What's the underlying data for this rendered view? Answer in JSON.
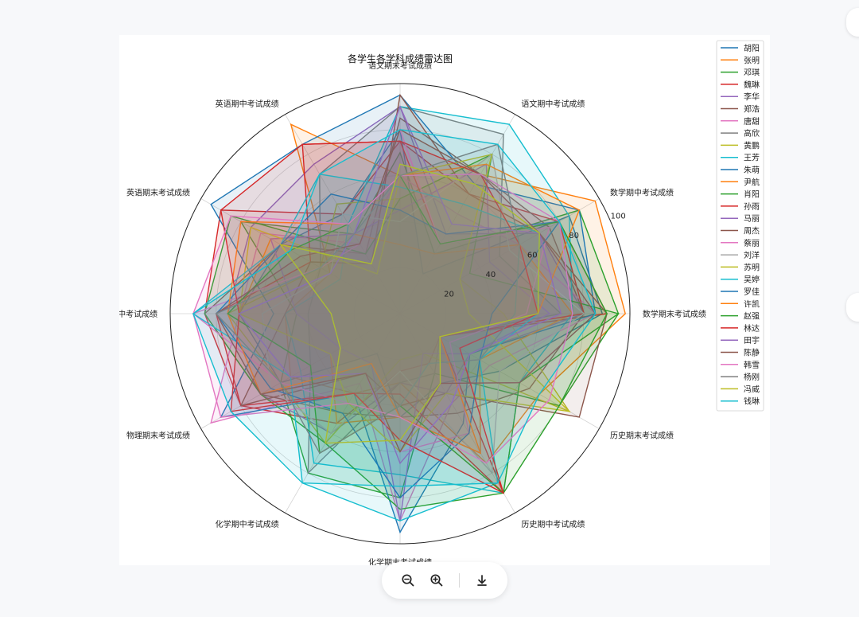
{
  "toolbar": {
    "zoom_out_icon": "zoom-out-icon",
    "zoom_in_icon": "zoom-in-icon",
    "download_icon": "download-icon"
  },
  "chart_data": {
    "type": "radar",
    "title": "各学生各学科成绩雷达图",
    "axes": [
      "语文期末考试成绩",
      "语文期中考试成绩",
      "数学期中考试成绩",
      "数学期末考试成绩",
      "历史期末考试成绩",
      "历史期中考试成绩",
      "化学期末考试成绩",
      "化学期中考试成绩",
      "物理期末考试成绩",
      "物理期中考试成绩",
      "英语期末考试成绩",
      "英语期中考试成绩"
    ],
    "rlim": [
      0,
      100
    ],
    "rticks": [
      20,
      40,
      60,
      80,
      100
    ],
    "grid": true,
    "legend_position": "upper-right-outside",
    "series": [
      {
        "name": "胡阳",
        "color": "#1f77b4",
        "values": [
          80,
          20,
          85,
          88,
          50,
          35,
          45,
          20,
          60,
          70,
          60,
          50
        ]
      },
      {
        "name": "张明",
        "color": "#ff7f0e",
        "values": [
          60,
          70,
          98,
          98,
          70,
          75,
          30,
          40,
          55,
          50,
          35,
          95
        ]
      },
      {
        "name": "邓琪",
        "color": "#2ca02c",
        "values": [
          70,
          30,
          90,
          95,
          80,
          30,
          80,
          80,
          60,
          45,
          80,
          40
        ]
      },
      {
        "name": "魏琳",
        "color": "#d62728",
        "values": [
          75,
          60,
          80,
          90,
          20,
          25,
          25,
          55,
          80,
          85,
          90,
          50
        ]
      },
      {
        "name": "李华",
        "color": "#9467bd",
        "values": [
          90,
          40,
          70,
          80,
          35,
          40,
          30,
          60,
          70,
          75,
          75,
          75
        ]
      },
      {
        "name": "郑浩",
        "color": "#8c564b",
        "values": [
          85,
          70,
          75,
          80,
          65,
          50,
          45,
          50,
          70,
          85,
          60,
          30
        ]
      },
      {
        "name": "唐甜",
        "color": "#e377c2",
        "values": [
          60,
          50,
          60,
          85,
          45,
          45,
          90,
          35,
          95,
          70,
          70,
          35
        ]
      },
      {
        "name": "高欣",
        "color": "#7f7f7f",
        "values": [
          90,
          90,
          50,
          70,
          20,
          30,
          30,
          80,
          45,
          40,
          40,
          70
        ]
      },
      {
        "name": "黄鹏",
        "color": "#bcbd22",
        "values": [
          50,
          80,
          30,
          45,
          85,
          20,
          20,
          65,
          60,
          75,
          40,
          55
        ]
      },
      {
        "name": "王芳",
        "color": "#17becf",
        "values": [
          90,
          95,
          85,
          75,
          60,
          90,
          70,
          75,
          50,
          50,
          30,
          45
        ]
      },
      {
        "name": "朱萌",
        "color": "#1f77b4",
        "values": [
          95,
          65,
          90,
          85,
          35,
          55,
          95,
          40,
          90,
          55,
          95,
          85
        ]
      },
      {
        "name": "尹航",
        "color": "#ff7f0e",
        "values": [
          30,
          30,
          60,
          75,
          40,
          70,
          45,
          55,
          35,
          70,
          65,
          40
        ]
      },
      {
        "name": "肖阳",
        "color": "#2ca02c",
        "values": [
          50,
          80,
          35,
          95,
          60,
          90,
          85,
          65,
          70,
          85,
          85,
          30
        ]
      },
      {
        "name": "孙雨",
        "color": "#d62728",
        "values": [
          75,
          35,
          80,
          80,
          20,
          90,
          35,
          40,
          80,
          80,
          45,
          85
        ]
      },
      {
        "name": "马丽",
        "color": "#9467bd",
        "values": [
          45,
          75,
          45,
          65,
          35,
          20,
          90,
          25,
          30,
          45,
          65,
          40
        ]
      },
      {
        "name": "周杰",
        "color": "#8c564b",
        "values": [
          95,
          60,
          70,
          90,
          90,
          40,
          40,
          30,
          80,
          50,
          45,
          25
        ]
      },
      {
        "name": "蔡丽",
        "color": "#e377c2",
        "values": [
          80,
          35,
          75,
          55,
          25,
          60,
          60,
          45,
          60,
          90,
          40,
          35
        ]
      },
      {
        "name": "刘洋",
        "color": "#aaaaaa",
        "values": [
          40,
          80,
          55,
          80,
          50,
          80,
          25,
          60,
          65,
          60,
          35,
          50
        ]
      },
      {
        "name": "苏明",
        "color": "#bcbd22",
        "values": [
          60,
          80,
          30,
          30,
          85,
          40,
          60,
          45,
          35,
          70,
          75,
          20
        ]
      },
      {
        "name": "吴婷",
        "color": "#17becf",
        "values": [
          55,
          55,
          70,
          60,
          40,
          85,
          90,
          85,
          55,
          90,
          60,
          70
        ]
      },
      {
        "name": "罗佳",
        "color": "#1f77b4",
        "values": [
          45,
          40,
          80,
          40,
          40,
          60,
          80,
          50,
          65,
          80,
          60,
          60
        ]
      },
      {
        "name": "许凯",
        "color": "#ff7f0e",
        "values": [
          60,
          75,
          90,
          60,
          20,
          70,
          45,
          25,
          70,
          75,
          80,
          45
        ]
      },
      {
        "name": "赵强",
        "color": "#2ca02c",
        "values": [
          60,
          35,
          80,
          90,
          80,
          90,
          40,
          70,
          45,
          75,
          55,
          45
        ]
      },
      {
        "name": "林达",
        "color": "#d62728",
        "values": [
          75,
          70,
          60,
          60,
          30,
          90,
          55,
          40,
          85,
          70,
          90,
          85
        ]
      },
      {
        "name": "田宇",
        "color": "#9467bd",
        "values": [
          90,
          45,
          70,
          70,
          35,
          45,
          65,
          30,
          55,
          70,
          35,
          40
        ]
      },
      {
        "name": "陈静",
        "color": "#8c564b",
        "values": [
          80,
          70,
          70,
          85,
          60,
          35,
          60,
          30,
          70,
          80,
          50,
          35
        ]
      },
      {
        "name": "韩雪",
        "color": "#e377c2",
        "values": [
          60,
          70,
          80,
          75,
          75,
          75,
          45,
          45,
          90,
          90,
          85,
          45
        ]
      },
      {
        "name": "杨刚",
        "color": "#7f7f7f",
        "values": [
          60,
          85,
          60,
          50,
          40,
          25,
          40,
          70,
          60,
          80,
          40,
          40
        ]
      },
      {
        "name": "冯威",
        "color": "#bcbd22",
        "values": [
          65,
          65,
          70,
          60,
          20,
          35,
          55,
          65,
          30,
          30,
          60,
          25
        ]
      },
      {
        "name": "钱琳",
        "color": "#17becf",
        "values": [
          80,
          85,
          80,
          85,
          70,
          85,
          75,
          85,
          85,
          90,
          55,
          70
        ]
      }
    ]
  }
}
